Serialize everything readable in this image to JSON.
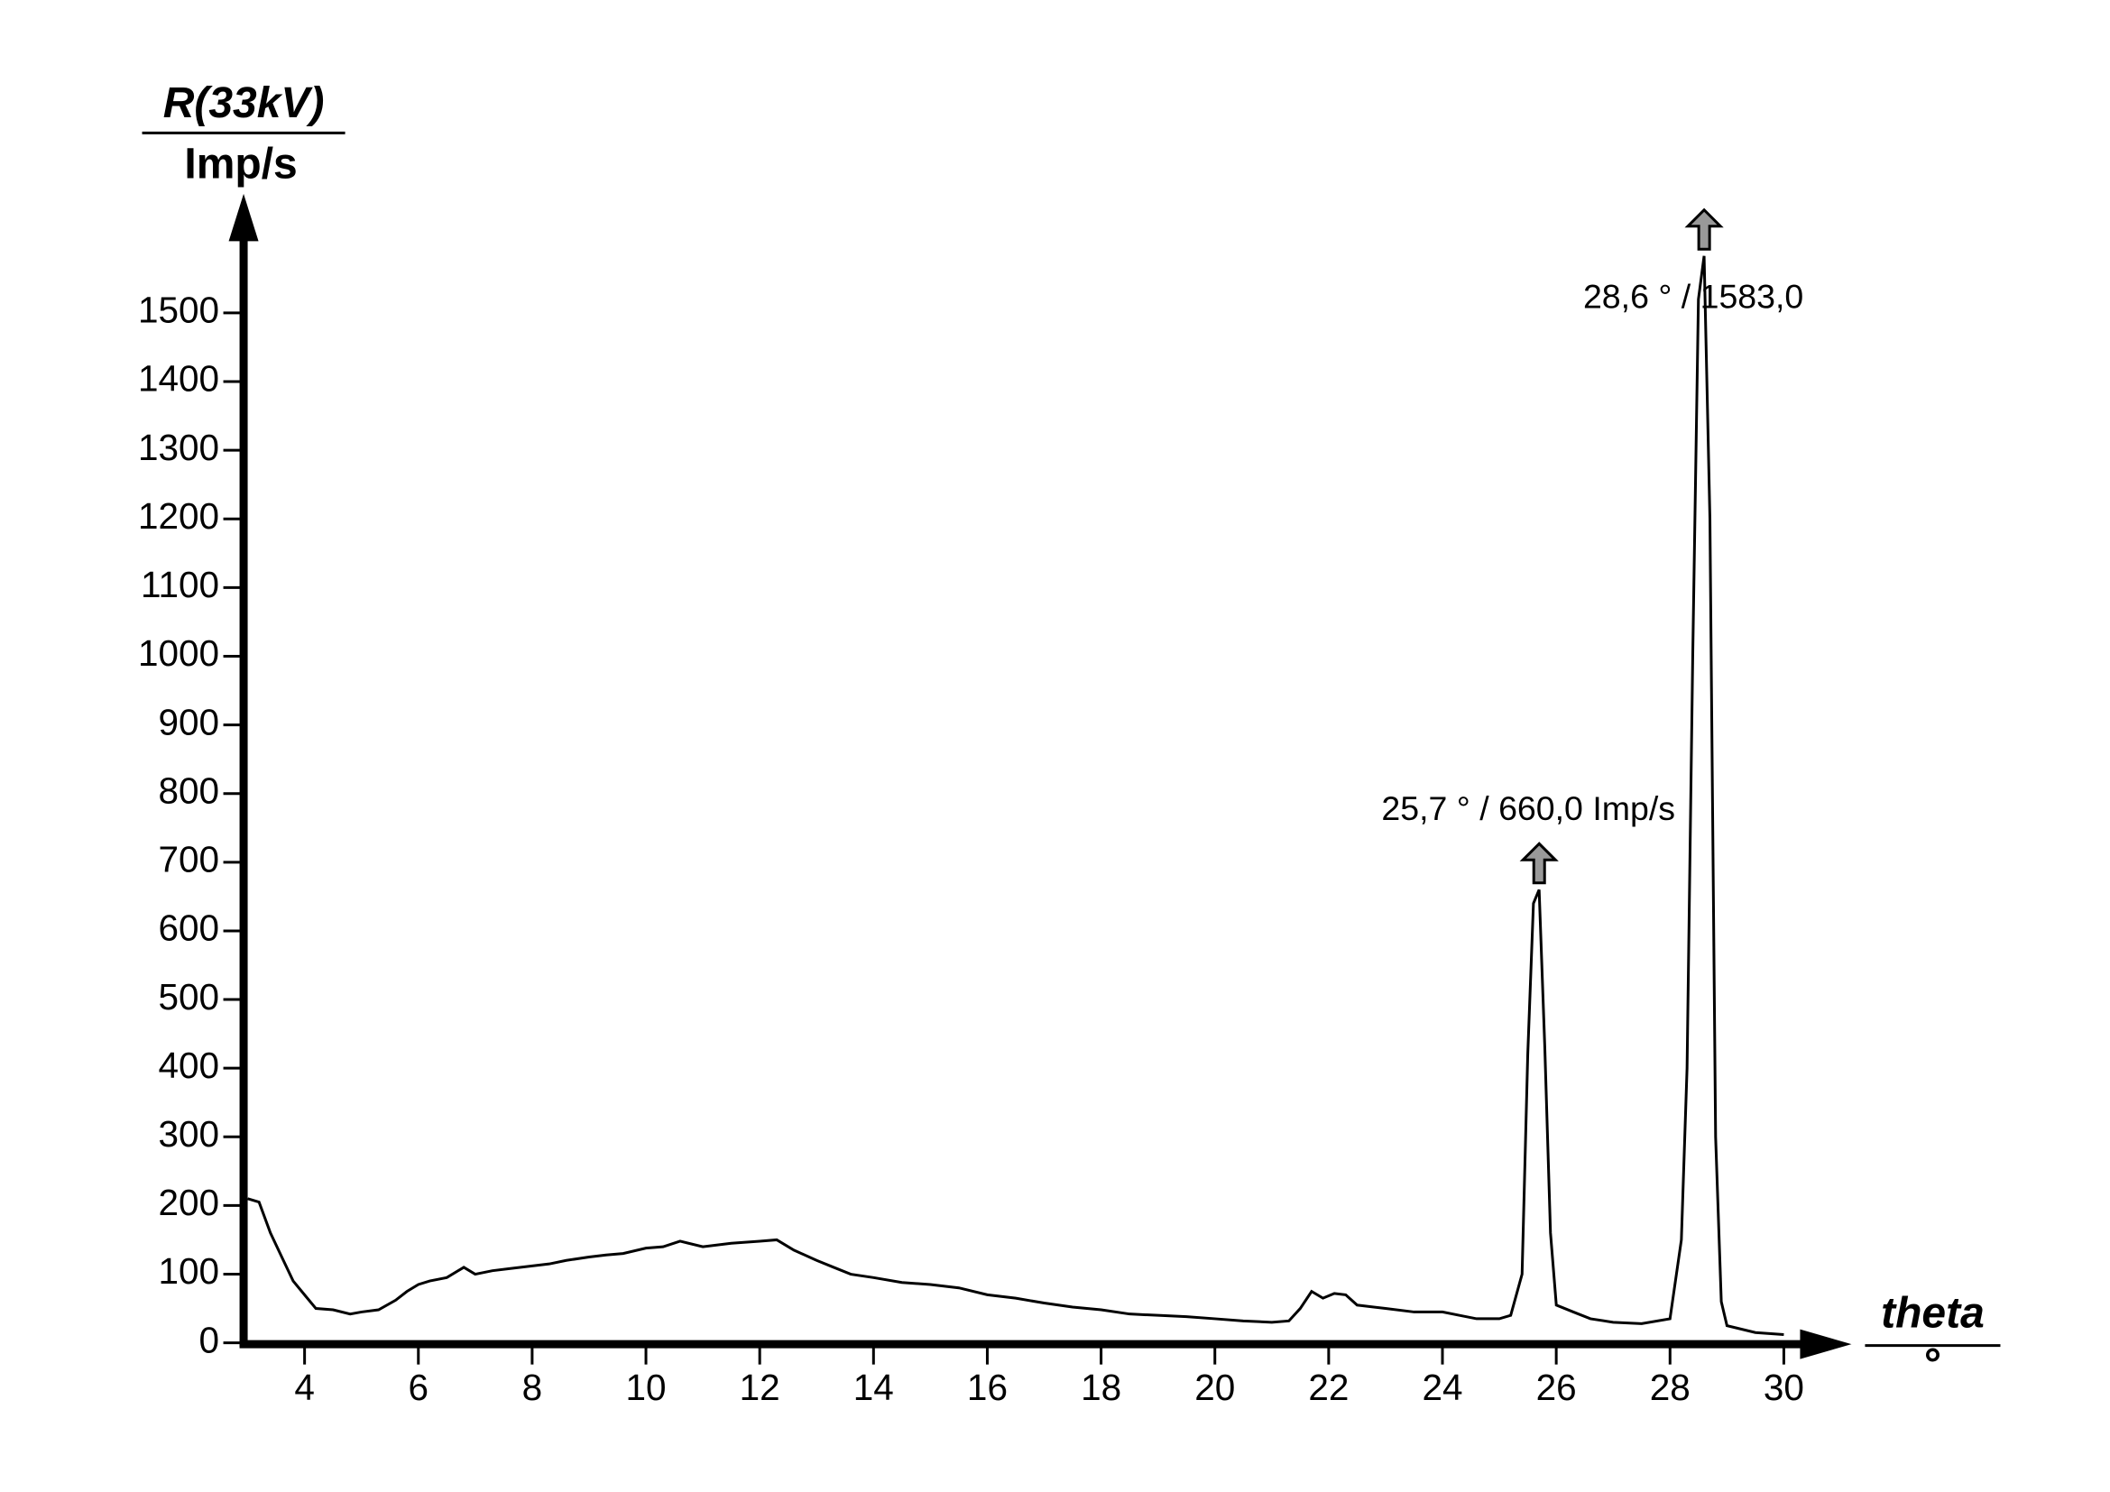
{
  "chart_data": {
    "type": "line",
    "y_label": "R(33kV)",
    "y_unit": "Imp/s",
    "x_label": "theta",
    "x_unit": "°",
    "series": [
      {
        "color": "#000000",
        "x": [
          3.0,
          3.2,
          3.4,
          3.6,
          3.8,
          4.0,
          4.2,
          4.5,
          4.8,
          5.0,
          5.3,
          5.6,
          5.8,
          6.0,
          6.2,
          6.5,
          6.8,
          7.0,
          7.3,
          7.6,
          8.0,
          8.3,
          8.6,
          9.0,
          9.3,
          9.6,
          10.0,
          10.3,
          10.6,
          11.0,
          11.5,
          12.0,
          12.3,
          12.6,
          13.0,
          13.3,
          13.6,
          14.0,
          14.5,
          15.0,
          15.5,
          16.0,
          16.5,
          17.0,
          17.5,
          18.0,
          18.5,
          19.0,
          19.5,
          20.0,
          20.5,
          21.0,
          21.3,
          21.5,
          21.7,
          21.9,
          22.1,
          22.3,
          22.5,
          23.0,
          23.5,
          24.0,
          24.3,
          24.6,
          25.0,
          25.2,
          25.4,
          25.5,
          25.6,
          25.7,
          25.8,
          25.9,
          26.0,
          26.3,
          26.6,
          27.0,
          27.5,
          28.0,
          28.2,
          28.3,
          28.4,
          28.5,
          28.6,
          28.7,
          28.8,
          28.9,
          29.0,
          29.5,
          30.0
        ],
        "values": [
          210,
          205,
          160,
          125,
          90,
          70,
          50,
          48,
          42,
          45,
          48,
          62,
          75,
          85,
          90,
          95,
          110,
          100,
          105,
          108,
          112,
          115,
          120,
          125,
          128,
          130,
          138,
          140,
          148,
          140,
          145,
          148,
          150,
          135,
          120,
          110,
          100,
          95,
          88,
          85,
          80,
          70,
          65,
          58,
          52,
          48,
          42,
          40,
          38,
          35,
          32,
          30,
          32,
          50,
          75,
          65,
          72,
          70,
          55,
          50,
          45,
          45,
          40,
          35,
          35,
          40,
          100,
          420,
          640,
          660,
          430,
          160,
          55,
          45,
          35,
          30,
          28,
          35,
          150,
          400,
          1000,
          1520,
          1583,
          1200,
          300,
          60,
          25,
          15,
          12
        ]
      }
    ],
    "annotations": [
      {
        "text": "25,7 ° / 660,0 Imp/s",
        "x": 25.7,
        "y": 660
      },
      {
        "text": "28,6 ° / 1583,0",
        "x": 28.6,
        "y": 1583
      }
    ],
    "xlim": [
      3,
      30
    ],
    "xticks": [
      4,
      6,
      8,
      10,
      12,
      14,
      16,
      18,
      20,
      22,
      24,
      26,
      28,
      30
    ],
    "ylim": [
      0,
      1500
    ],
    "yticks": [
      0,
      100,
      200,
      300,
      400,
      500,
      600,
      700,
      800,
      900,
      1000,
      1100,
      1200,
      1300,
      1400,
      1500
    ],
    "grid": false
  }
}
